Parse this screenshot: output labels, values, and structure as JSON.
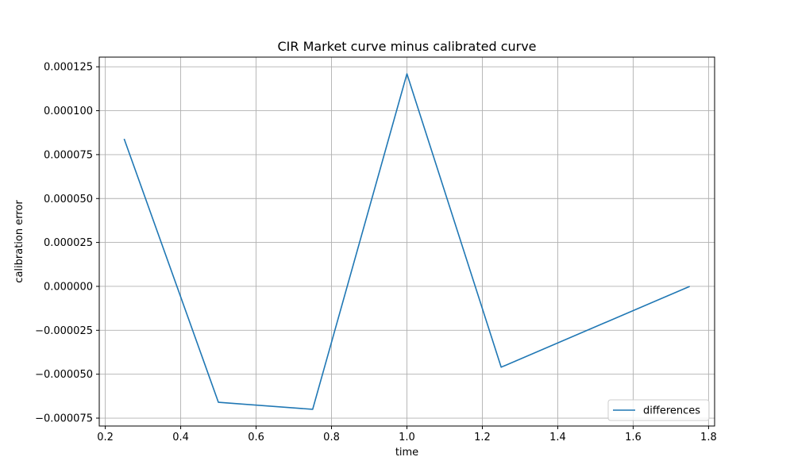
{
  "chart_data": {
    "type": "line",
    "title": "CIR Market curve minus calibrated curve",
    "xlabel": "time",
    "ylabel": "calibration error",
    "xlim": [
      0.2,
      1.8
    ],
    "ylim": [
      -7.5e-05,
      0.000125
    ],
    "x_ticks": [
      0.2,
      0.4,
      0.6,
      0.8,
      1.0,
      1.2,
      1.4,
      1.6,
      1.8
    ],
    "x_tick_labels": [
      "0.2",
      "0.4",
      "0.6",
      "0.8",
      "1.0",
      "1.2",
      "1.4",
      "1.6",
      "1.8"
    ],
    "y_ticks": [
      -7.5e-05,
      -5e-05,
      -2.5e-05,
      0.0,
      2.5e-05,
      5e-05,
      7.5e-05,
      0.0001,
      0.000125
    ],
    "y_tick_labels": [
      "−0.000075",
      "−0.000050",
      "−0.000025",
      "0.000000",
      "0.000025",
      "0.000050",
      "0.000075",
      "0.000100",
      "0.000125"
    ],
    "grid": true,
    "legend_position": "bottom-right",
    "series": [
      {
        "name": "differences",
        "color": "#1f77b4",
        "x": [
          0.25,
          0.5,
          0.75,
          1.0,
          1.25,
          1.75
        ],
        "y": [
          8.4e-05,
          -6.6e-05,
          -7e-05,
          0.000121,
          -4.6e-05,
          0.0
        ]
      }
    ]
  }
}
